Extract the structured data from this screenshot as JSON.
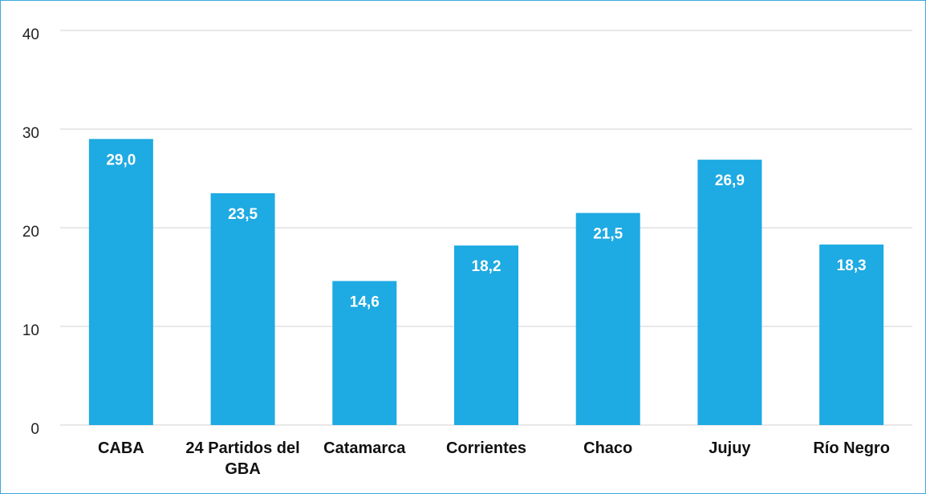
{
  "chart_data": {
    "type": "bar",
    "categories": [
      "CABA",
      "24 Partidos del GBA",
      "Catamarca",
      "Corrientes",
      "Chaco",
      "Jujuy",
      "Río Negro"
    ],
    "values": [
      29.0,
      23.5,
      14.6,
      18.2,
      21.5,
      26.9,
      18.3
    ],
    "value_labels": [
      "29,0",
      "23,5",
      "14,6",
      "18,2",
      "21,5",
      "26,9",
      "18,3"
    ],
    "color": "#1eaae2",
    "ylim": [
      0,
      40
    ],
    "yticks": [
      0,
      10,
      20,
      30,
      40
    ],
    "grid": true
  }
}
